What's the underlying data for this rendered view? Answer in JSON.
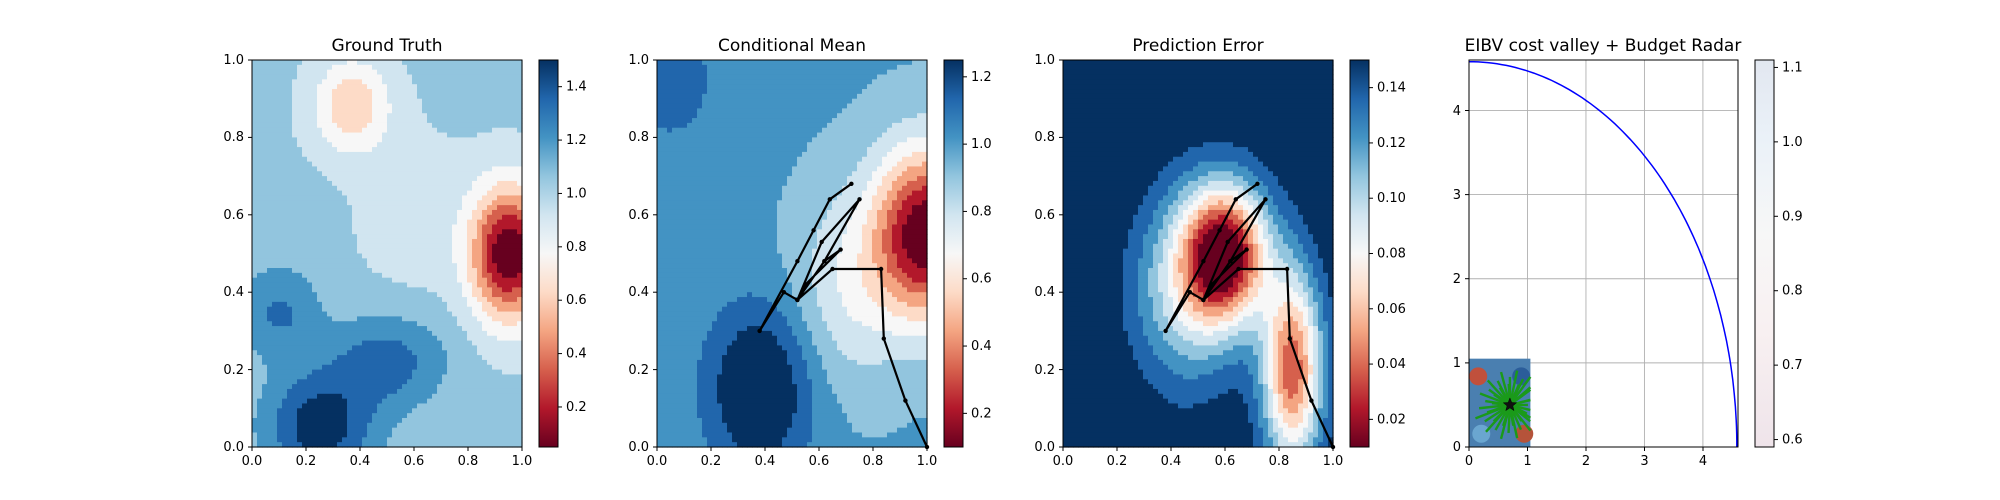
{
  "chart_data": [
    {
      "type": "heatmap",
      "title": "Ground Truth",
      "xlim": [
        0,
        1
      ],
      "ylim": [
        0,
        1
      ],
      "xticks": [
        "0.0",
        "0.2",
        "0.4",
        "0.6",
        "0.8",
        "1.0"
      ],
      "yticks": [
        "0.0",
        "0.2",
        "0.4",
        "0.6",
        "0.8",
        "1.0"
      ],
      "colormap": "RdBu",
      "colorbar": {
        "range": [
          0.05,
          1.5
        ],
        "ticks": [
          "0.2",
          "0.4",
          "0.6",
          "0.8",
          "1.0",
          "1.2",
          "1.4"
        ],
        "tick_values": [
          0.2,
          0.4,
          0.6,
          0.8,
          1.0,
          1.2,
          1.4
        ]
      },
      "field_features": [
        {
          "kind": "low",
          "x": 0.95,
          "y": 0.5,
          "value": 0.1
        },
        {
          "kind": "low",
          "x": 0.37,
          "y": 0.88,
          "value": 0.65
        },
        {
          "kind": "high",
          "x": 0.25,
          "y": 0.05,
          "value": 1.45
        },
        {
          "kind": "high",
          "x": 0.45,
          "y": 0.2,
          "value": 1.3
        }
      ]
    },
    {
      "type": "heatmap",
      "title": "Conditional Mean",
      "xlim": [
        0,
        1
      ],
      "ylim": [
        0,
        1
      ],
      "xticks": [
        "0.0",
        "0.2",
        "0.4",
        "0.6",
        "0.8",
        "1.0"
      ],
      "yticks": [
        "0.0",
        "0.2",
        "0.4",
        "0.6",
        "0.8",
        "1.0"
      ],
      "colormap": "RdBu",
      "colorbar": {
        "range": [
          0.1,
          1.25
        ],
        "ticks": [
          "0.2",
          "0.4",
          "0.6",
          "0.8",
          "1.0",
          "1.2"
        ],
        "tick_values": [
          0.2,
          0.4,
          0.6,
          0.8,
          1.0,
          1.2
        ]
      },
      "path": [
        [
          0.72,
          0.68
        ],
        [
          0.64,
          0.64
        ],
        [
          0.58,
          0.56
        ],
        [
          0.52,
          0.48
        ],
        [
          0.38,
          0.3
        ],
        [
          0.47,
          0.4
        ],
        [
          0.52,
          0.38
        ],
        [
          0.62,
          0.48
        ],
        [
          0.68,
          0.51
        ],
        [
          0.55,
          0.42
        ],
        [
          0.52,
          0.38
        ],
        [
          0.62,
          0.48
        ],
        [
          0.75,
          0.64
        ],
        [
          0.61,
          0.53
        ],
        [
          0.52,
          0.38
        ],
        [
          0.65,
          0.46
        ],
        [
          0.83,
          0.46
        ],
        [
          0.84,
          0.28
        ],
        [
          0.92,
          0.12
        ],
        [
          1.0,
          0.0
        ]
      ]
    },
    {
      "type": "heatmap",
      "title": "Prediction Error",
      "xlim": [
        0,
        1
      ],
      "ylim": [
        0,
        1
      ],
      "xticks": [
        "0.0",
        "0.2",
        "0.4",
        "0.6",
        "0.8",
        "1.0"
      ],
      "yticks": [
        "0.0",
        "0.2",
        "0.4",
        "0.6",
        "0.8",
        "1.0"
      ],
      "colormap": "RdBu",
      "colorbar": {
        "range": [
          0.01,
          0.15
        ],
        "ticks": [
          "0.02",
          "0.04",
          "0.06",
          "0.08",
          "0.10",
          "0.12",
          "0.14"
        ],
        "tick_values": [
          0.02,
          0.04,
          0.06,
          0.08,
          0.1,
          0.12,
          0.14
        ]
      }
    },
    {
      "type": "line",
      "title": "EIBV cost valley + Budget Radar",
      "xlim": [
        0,
        4.6
      ],
      "ylim": [
        0,
        4.6
      ],
      "xticks": [
        "0",
        "1",
        "2",
        "3",
        "4"
      ],
      "xtick_values": [
        0,
        1,
        2,
        3,
        4
      ],
      "yticks": [
        "0",
        "1",
        "2",
        "3",
        "4"
      ],
      "ytick_values": [
        0,
        1,
        2,
        3,
        4
      ],
      "grid": true,
      "series": [
        {
          "kind": "arc",
          "center": [
            0,
            0
          ],
          "radius": 4.58,
          "color": "#0000ff"
        }
      ],
      "marker": {
        "symbol": "star",
        "x": 0.7,
        "y": 0.5
      },
      "cost_field_extent": [
        0,
        1.05,
        0,
        1.05
      ],
      "colorbar": {
        "range": [
          0.59,
          1.11
        ],
        "ticks": [
          "0.6",
          "0.7",
          "0.8",
          "0.9",
          "1.0",
          "1.1"
        ],
        "tick_values": [
          0.6,
          0.7,
          0.8,
          0.9,
          1.0,
          1.1
        ]
      }
    }
  ]
}
